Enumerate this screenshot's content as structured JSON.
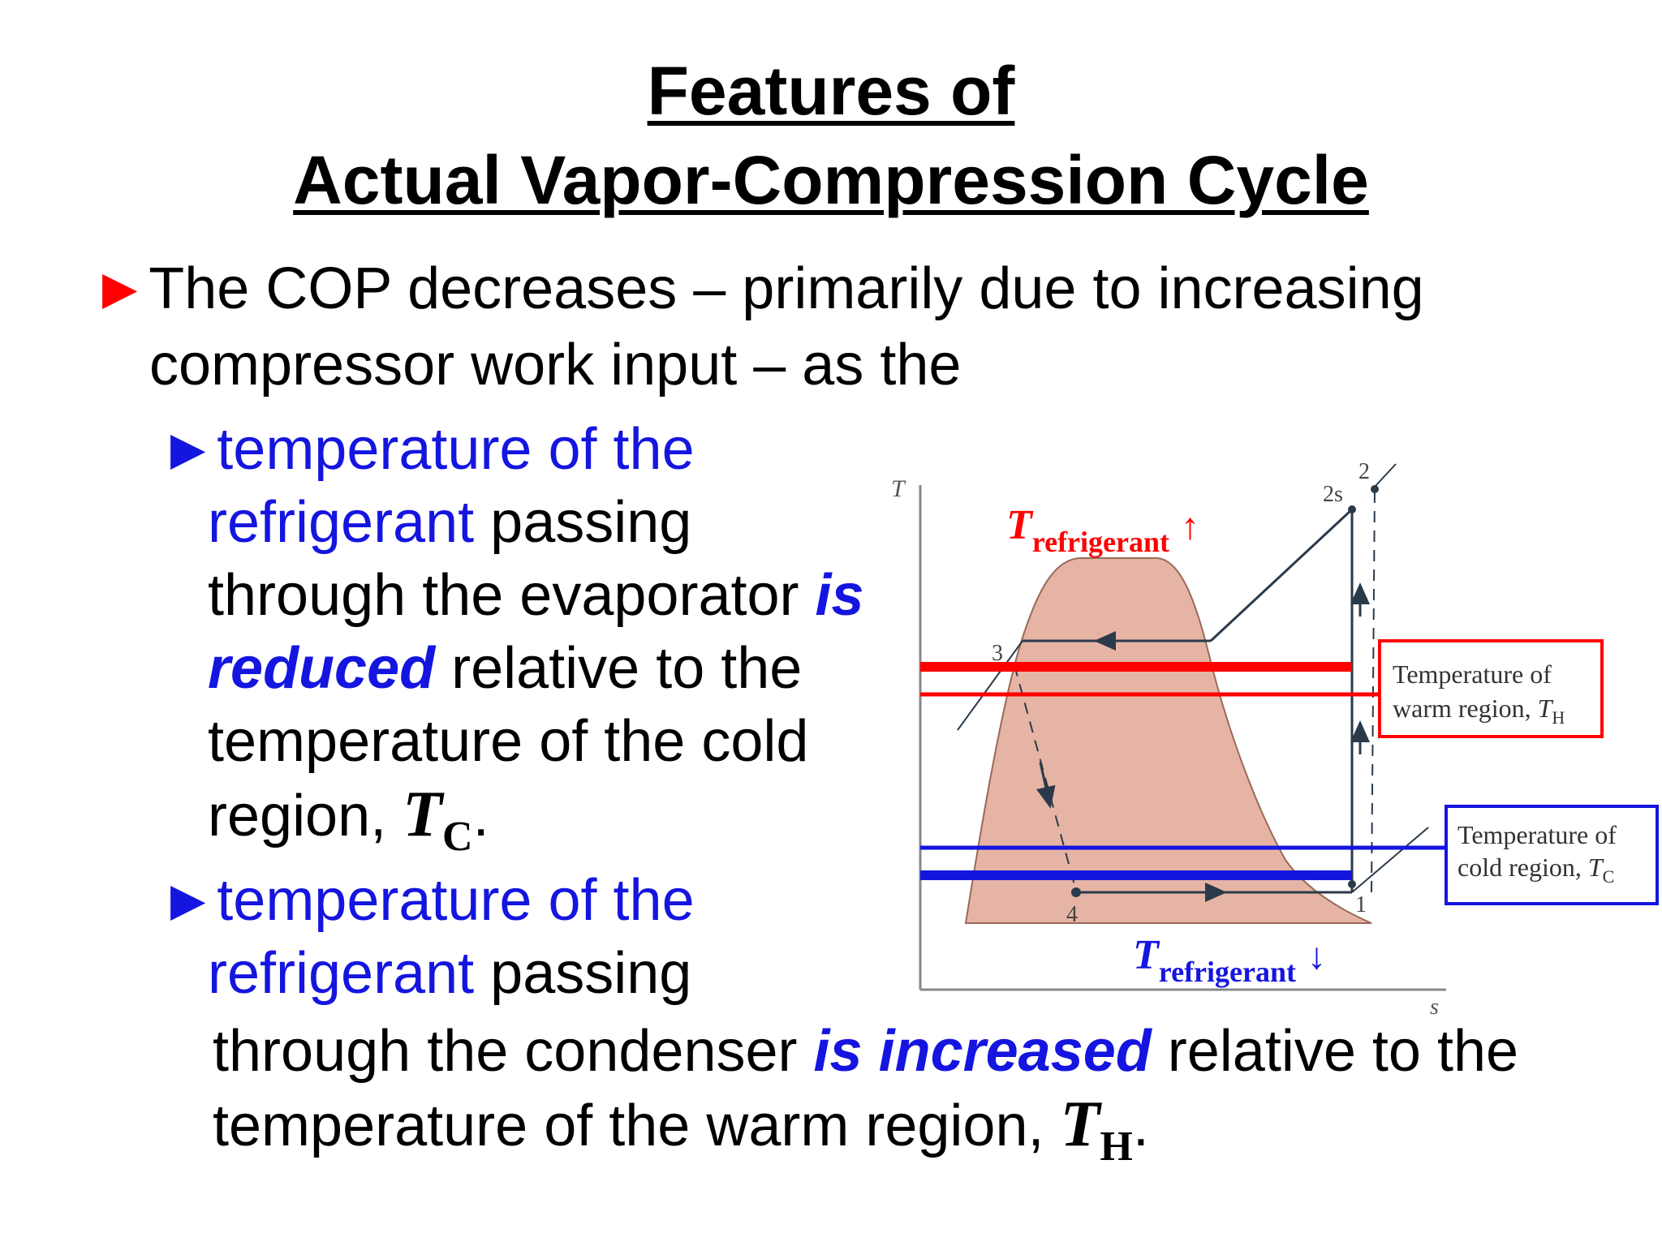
{
  "title": {
    "line1": "Features of",
    "line2": "Actual Vapor-Compression Cycle"
  },
  "bullet_main": {
    "marker": "►",
    "line1": "The COP decreases – primarily due to increasing",
    "line2": "compressor work input – as the"
  },
  "sub1": {
    "marker": "►",
    "l1_blue": "temperature of the",
    "l2_blue": "refrigerant",
    "l2_rest": " passing",
    "l3_text": "through the evaporator ",
    "l3_emph": "is",
    "l4_emph": "reduced",
    "l4_rest": " relative to the",
    "l5": "temperature of the cold",
    "l6_pre": "region, ",
    "l6_sym": "T",
    "l6_sub": "C",
    "l6_end": "."
  },
  "sub2": {
    "marker": "►",
    "l1_blue": "temperature of the",
    "l2_blue": "refrigerant",
    "l2_rest": " passing",
    "l3_text": "through the condenser ",
    "l3_emph": "is increased",
    "l3_rest": " relative to the",
    "l4_pre": "temperature of the warm region, ",
    "l4_sym": "T",
    "l4_sub": "H",
    "l4_end": "."
  },
  "diagram": {
    "axis_t": "T",
    "axis_s": "s",
    "state_2": "2",
    "state_2s": "2s",
    "state_3": "3",
    "state_4": "4",
    "state_1": "1",
    "t_ref_up_sym": "T",
    "t_ref_up_sub": "refrigerant",
    "t_ref_up_arrow": "↑",
    "t_ref_down_sym": "T",
    "t_ref_down_sub": "refrigerant",
    "t_ref_down_arrow": "↓",
    "warm_box_l1": "Temperature of",
    "warm_box_l2": "warm region, ",
    "warm_box_sym": "T",
    "warm_box_sub": "H",
    "cold_box_l1": "Temperature of",
    "cold_box_l2": "cold region, ",
    "cold_box_sym": "T",
    "cold_box_sub": "C"
  },
  "colors": {
    "red": "#ff0000",
    "blue": "#1515e0",
    "dome": "#e6b4a4"
  }
}
